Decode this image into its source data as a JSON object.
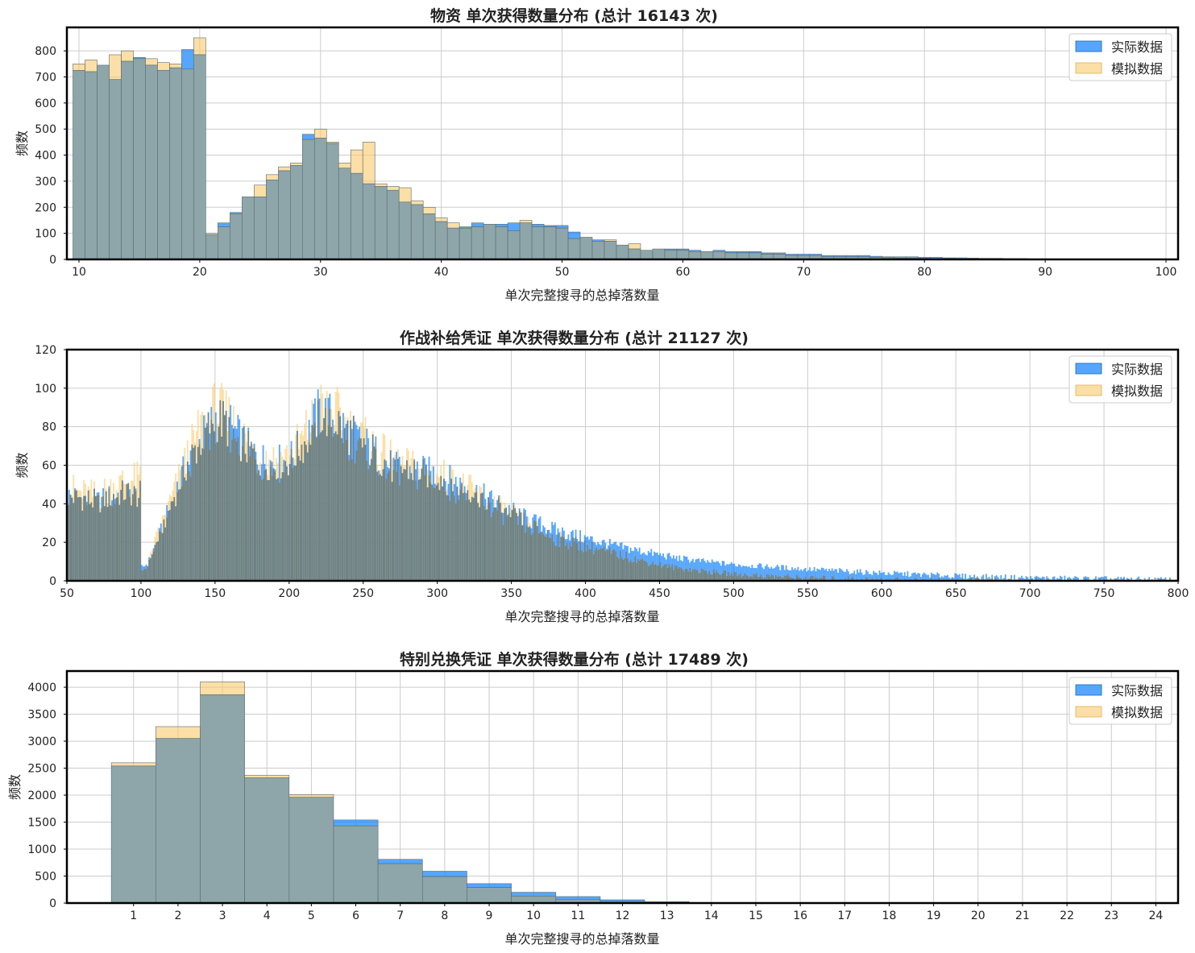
{
  "colors": {
    "actual": "#1e88ff",
    "simulated": "#f9c96a",
    "overlap": "#8ea6a9",
    "grid": "#cccccc",
    "frame": "#000000"
  },
  "legend": {
    "actual": "实际数据",
    "simulated": "模拟数据",
    "position": "top-right"
  },
  "chart_data": [
    {
      "type": "bar",
      "title": "物资 单次获得数量分布 (总计 16143 次)",
      "xlabel": "单次完整搜寻的总掉落数量",
      "ylabel": "频数",
      "xlim": [
        9,
        101
      ],
      "ylim": [
        0,
        890
      ],
      "xticks": [
        10,
        20,
        30,
        40,
        50,
        60,
        70,
        80,
        90,
        100
      ],
      "yticks": [
        0,
        100,
        200,
        300,
        400,
        500,
        600,
        700,
        800
      ],
      "bin_start": 9.5,
      "bin_width": 1,
      "series": [
        {
          "name": "实际数据",
          "values": [
            725,
            720,
            745,
            690,
            760,
            775,
            745,
            725,
            735,
            805,
            785,
            95,
            140,
            180,
            240,
            240,
            305,
            340,
            360,
            480,
            465,
            445,
            350,
            330,
            290,
            280,
            265,
            220,
            210,
            175,
            145,
            120,
            125,
            140,
            135,
            135,
            140,
            140,
            135,
            130,
            130,
            105,
            85,
            75,
            70,
            55,
            40,
            35,
            40,
            40,
            40,
            35,
            30,
            35,
            30,
            30,
            30,
            25,
            25,
            20,
            20,
            20,
            15,
            15,
            15,
            15,
            12,
            10,
            10,
            10,
            8,
            8,
            6,
            6,
            5,
            4,
            4,
            3,
            3,
            2,
            2,
            2,
            2,
            2,
            2,
            2,
            1,
            1,
            1
          ]
        },
        {
          "name": "模拟数据",
          "values": [
            750,
            765,
            745,
            785,
            800,
            770,
            770,
            755,
            750,
            730,
            850,
            100,
            125,
            175,
            240,
            285,
            325,
            355,
            370,
            460,
            500,
            450,
            370,
            420,
            450,
            290,
            280,
            275,
            225,
            200,
            160,
            140,
            120,
            125,
            135,
            125,
            110,
            150,
            125,
            125,
            120,
            80,
            85,
            70,
            75,
            55,
            60,
            35,
            40,
            35,
            35,
            30,
            30,
            30,
            25,
            25,
            25,
            20,
            20,
            15,
            15,
            15,
            10,
            10,
            10,
            10,
            8,
            6,
            5,
            5,
            4,
            3,
            3,
            2,
            2,
            2,
            1,
            1,
            1,
            1,
            1,
            1,
            1,
            1,
            1,
            1,
            0,
            0,
            0
          ]
        }
      ]
    },
    {
      "type": "bar",
      "title": "作战补给凭证 单次获得数量分布 (总计 21127 次)",
      "xlabel": "单次完整搜寻的总掉落数量",
      "ylabel": "频数",
      "xlim": [
        50,
        800
      ],
      "ylim": [
        0,
        120
      ],
      "xticks": [
        50,
        100,
        150,
        200,
        250,
        300,
        350,
        400,
        450,
        500,
        550,
        600,
        650,
        700,
        750,
        800
      ],
      "yticks": [
        0,
        20,
        40,
        60,
        80,
        100,
        120
      ],
      "bin_start": 50,
      "bin_width": 1,
      "series": [
        {
          "name": "实际数据",
          "anchors": [
            [
              50,
              44
            ],
            [
              60,
              43
            ],
            [
              70,
              41
            ],
            [
              80,
              44
            ],
            [
              90,
              46
            ],
            [
              98,
              44
            ],
            [
              99,
              45
            ],
            [
              100,
              7
            ],
            [
              104,
              9
            ],
            [
              110,
              20
            ],
            [
              120,
              40
            ],
            [
              130,
              60
            ],
            [
              140,
              73
            ],
            [
              150,
              85
            ],
            [
              160,
              80
            ],
            [
              170,
              70
            ],
            [
              180,
              63
            ],
            [
              190,
              61
            ],
            [
              200,
              63
            ],
            [
              210,
              72
            ],
            [
              220,
              88
            ],
            [
              230,
              84
            ],
            [
              240,
              77
            ],
            [
              250,
              71
            ],
            [
              260,
              65
            ],
            [
              270,
              58
            ],
            [
              280,
              58
            ],
            [
              300,
              55
            ],
            [
              320,
              48
            ],
            [
              340,
              40
            ],
            [
              360,
              32
            ],
            [
              380,
              26
            ],
            [
              400,
              22
            ],
            [
              420,
              18
            ],
            [
              440,
              15
            ],
            [
              460,
              12
            ],
            [
              480,
              10
            ],
            [
              500,
              8.5
            ],
            [
              550,
              6
            ],
            [
              600,
              4
            ],
            [
              650,
              2.5
            ],
            [
              700,
              1.5
            ],
            [
              750,
              1
            ],
            [
              800,
              0.5
            ]
          ]
        },
        {
          "name": "模拟数据",
          "anchors": [
            [
              50,
              48
            ],
            [
              60,
              45
            ],
            [
              70,
              44
            ],
            [
              80,
              48
            ],
            [
              90,
              52
            ],
            [
              98,
              52
            ],
            [
              99,
              54
            ],
            [
              100,
              5
            ],
            [
              104,
              8
            ],
            [
              110,
              22
            ],
            [
              120,
              42
            ],
            [
              130,
              62
            ],
            [
              140,
              78
            ],
            [
              150,
              88
            ],
            [
              160,
              82
            ],
            [
              170,
              72
            ],
            [
              180,
              64
            ],
            [
              190,
              62
            ],
            [
              200,
              64
            ],
            [
              210,
              75
            ],
            [
              220,
              88
            ],
            [
              230,
              86
            ],
            [
              240,
              78
            ],
            [
              250,
              72
            ],
            [
              260,
              66
            ],
            [
              270,
              60
            ],
            [
              280,
              58
            ],
            [
              300,
              55
            ],
            [
              320,
              47
            ],
            [
              340,
              38
            ],
            [
              360,
              29
            ],
            [
              380,
              22
            ],
            [
              400,
              18
            ],
            [
              420,
              14
            ],
            [
              440,
              10
            ],
            [
              460,
              7
            ],
            [
              480,
              5
            ],
            [
              500,
              3.5
            ],
            [
              550,
              1.5
            ],
            [
              600,
              0.7
            ],
            [
              650,
              0.3
            ],
            [
              700,
              0.1
            ],
            [
              750,
              0
            ],
            [
              800,
              0
            ]
          ]
        }
      ]
    },
    {
      "type": "bar",
      "title": "特别兑换凭证 单次获得数量分布 (总计 17489 次)",
      "xlabel": "单次完整搜寻的总掉落数量",
      "ylabel": "频数",
      "xlim": [
        -0.5,
        24.5
      ],
      "ylim": [
        0,
        4300
      ],
      "xticks": [
        1,
        2,
        3,
        4,
        5,
        6,
        7,
        8,
        9,
        10,
        11,
        12,
        13,
        14,
        15,
        16,
        17,
        18,
        19,
        20,
        21,
        22,
        23,
        24
      ],
      "yticks": [
        0,
        500,
        1000,
        1500,
        2000,
        2500,
        3000,
        3500,
        4000
      ],
      "categories": [
        1,
        2,
        3,
        4,
        5,
        6,
        7,
        8,
        9,
        10,
        11,
        12,
        13,
        14,
        15,
        16,
        17,
        18,
        19,
        20,
        21,
        22,
        23,
        24
      ],
      "series": [
        {
          "name": "实际数据",
          "values": [
            2540,
            3050,
            3860,
            2320,
            1960,
            1540,
            810,
            590,
            360,
            200,
            120,
            60,
            25,
            10,
            5,
            3,
            2,
            1,
            1,
            0,
            0,
            0,
            0,
            0
          ]
        },
        {
          "name": "模拟数据",
          "values": [
            2600,
            3270,
            4100,
            2370,
            2010,
            1430,
            730,
            490,
            290,
            130,
            70,
            30,
            12,
            5,
            2,
            1,
            1,
            0,
            0,
            0,
            0,
            0,
            0,
            0
          ]
        }
      ]
    }
  ]
}
